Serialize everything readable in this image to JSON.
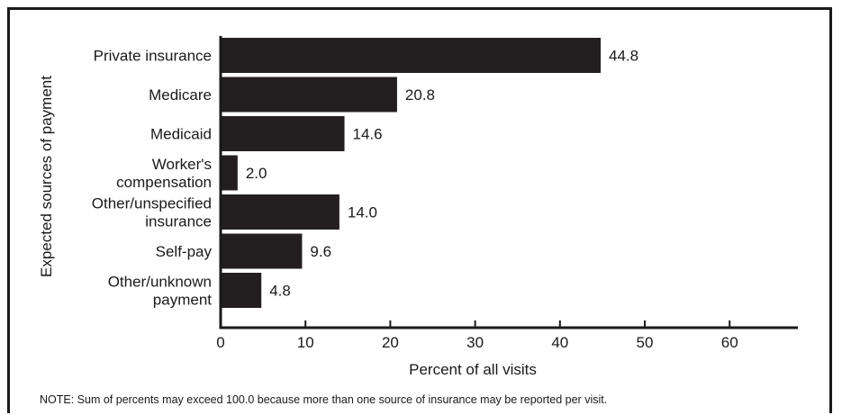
{
  "chart_data": {
    "type": "bar",
    "orientation": "horizontal",
    "categories": [
      "Private insurance",
      "Medicare",
      "Medicaid",
      "Worker's compensation",
      "Other/unspecified insurance",
      "Self-pay",
      "Other/unknown payment"
    ],
    "category_lines": [
      [
        "Private insurance"
      ],
      [
        "Medicare"
      ],
      [
        "Medicaid"
      ],
      [
        "Worker's",
        "compensation"
      ],
      [
        "Other/unspecified",
        "insurance"
      ],
      [
        "Self-pay"
      ],
      [
        "Other/unknown",
        "payment"
      ]
    ],
    "values": [
      44.8,
      20.8,
      14.6,
      2.0,
      14.0,
      9.6,
      4.8
    ],
    "value_labels": [
      "44.8",
      "20.8",
      "14.6",
      "2.0",
      "14.0",
      "9.6",
      "4.8"
    ],
    "xlabel": "Percent of all visits",
    "ylabel": "Expected sources of payment",
    "xlim": [
      0,
      68
    ],
    "xticks": [
      0,
      10,
      20,
      30,
      40,
      50,
      60
    ],
    "grid": false,
    "bar_color": "#231f20"
  },
  "note": "NOTE: Sum of percents may exceed 100.0 because more than one source of insurance may be reported per visit."
}
